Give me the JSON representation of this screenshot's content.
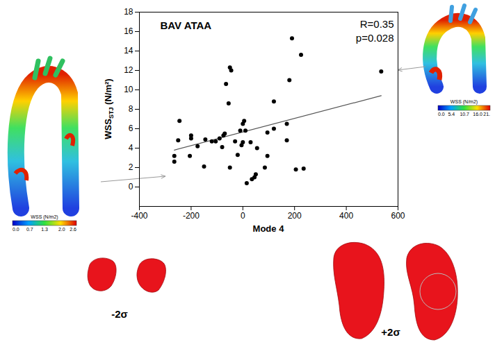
{
  "chart_data": {
    "type": "scatter",
    "title": "BAV ATAA",
    "annotations": [
      "R=0.35",
      "p=0.028"
    ],
    "xlabel": "Mode 4",
    "ylabel": {
      "text": "WSS",
      "subscript": "STJ",
      "unit": "(N/m²)"
    },
    "x": [
      -265,
      -265,
      -250,
      -245,
      -200,
      -200,
      -205,
      -175,
      -150,
      -145,
      -120,
      -105,
      -90,
      -80,
      -75,
      -70,
      -65,
      -55,
      -50,
      -45,
      -50,
      -30,
      -20,
      -10,
      -5,
      0,
      5,
      0,
      10,
      15,
      30,
      35,
      45,
      55,
      50,
      85,
      95,
      95,
      120,
      120,
      170,
      170,
      180,
      190,
      205,
      225,
      235,
      535
    ],
    "values": [
      3.2,
      2.6,
      4.8,
      6.8,
      5.3,
      5.0,
      3.2,
      4.2,
      2.1,
      4.9,
      4.7,
      4.7,
      5.0,
      4.1,
      5.3,
      5.5,
      10.6,
      8.6,
      12.3,
      12.0,
      2.0,
      4.7,
      3.3,
      5.8,
      4.3,
      6.5,
      6.8,
      4.6,
      5.8,
      0.4,
      4.6,
      0.8,
      1.0,
      4.0,
      1.3,
      2.0,
      3.2,
      5.6,
      8.8,
      6.0,
      6.5,
      4.8,
      11.0,
      15.3,
      1.8,
      13.6,
      1.9,
      11.9
    ],
    "color": "#000000",
    "fit": {
      "x": [
        -265,
        535
      ],
      "y": [
        3.8,
        9.4
      ],
      "color": "#555555"
    },
    "xlim": [
      -400,
      600
    ],
    "xticks": [
      -400,
      -200,
      0,
      200,
      400,
      600
    ],
    "ylim": [
      -2,
      18
    ],
    "yticks": [
      0,
      2,
      4,
      6,
      8,
      10,
      12,
      14,
      16,
      18
    ],
    "grid": false,
    "colorbars": [
      {
        "title": "WSS (N/m2)",
        "range": [
          0,
          2.6
        ],
        "ticks": [
          {
            "value": 0,
            "label": "0.0"
          },
          {
            "value": 0.7,
            "label": "0.7"
          },
          {
            "value": 1.3,
            "label": "1.3"
          },
          {
            "value": 2.0,
            "label": "2.0"
          },
          {
            "value": 2.6,
            "label": "2.6"
          }
        ]
      },
      {
        "title": "WSS (N/m2)",
        "range": [
          0,
          21
        ],
        "ticks": [
          {
            "value": 0,
            "label": "0.0"
          },
          {
            "value": 5.4,
            "label": "5.4"
          },
          {
            "value": 10.7,
            "label": "10.7"
          },
          {
            "value": 16.0,
            "label": "16.0"
          },
          {
            "value": 21,
            "label": "21."
          }
        ]
      }
    ],
    "shape_labels": [
      "-2σ",
      "+2σ"
    ]
  }
}
